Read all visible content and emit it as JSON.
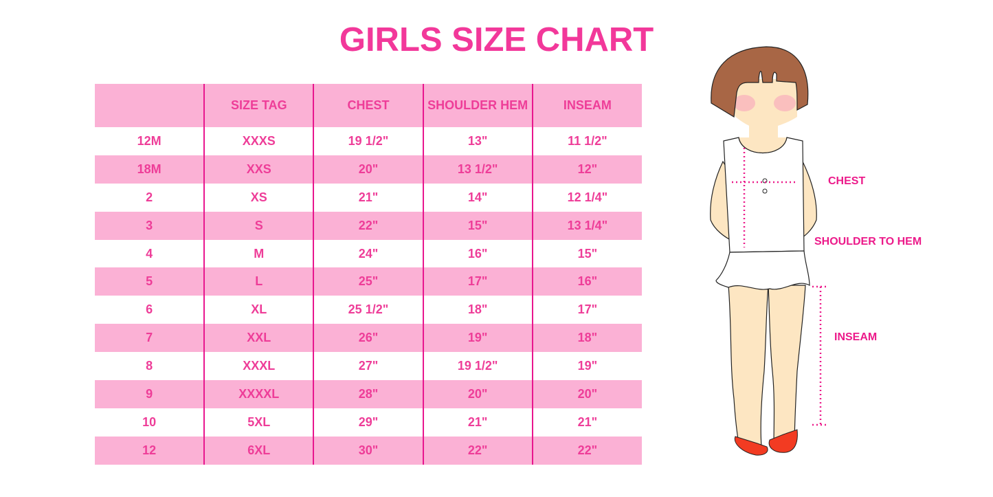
{
  "title": "GIRLS SIZE CHART",
  "table": {
    "headers": [
      "",
      "SIZE TAG",
      "CHEST",
      "SHOULDER HEM",
      "INSEAM"
    ],
    "rows": [
      [
        "12M",
        "XXXS",
        "19 1/2\"",
        "13\"",
        "11 1/2\""
      ],
      [
        "18M",
        "XXS",
        "20\"",
        "13 1/2\"",
        "12\""
      ],
      [
        "2",
        "XS",
        "21\"",
        "14\"",
        "12 1/4\""
      ],
      [
        "3",
        "S",
        "22\"",
        "15\"",
        "13 1/4\""
      ],
      [
        "4",
        "M",
        "24\"",
        "16\"",
        "15\""
      ],
      [
        "5",
        "L",
        "25\"",
        "17\"",
        "16\""
      ],
      [
        "6",
        "XL",
        "25 1/2\"",
        "18\"",
        "17\""
      ],
      [
        "7",
        "XXL",
        "26\"",
        "19\"",
        "18\""
      ],
      [
        "8",
        "XXXL",
        "27\"",
        "19 1/2\"",
        "19\""
      ],
      [
        "9",
        "XXXXL",
        "28\"",
        "20\"",
        "20\""
      ],
      [
        "10",
        "5XL",
        "29\"",
        "21\"",
        "21\""
      ],
      [
        "12",
        "6XL",
        "30\"",
        "22\"",
        "22\""
      ]
    ]
  },
  "illustration": {
    "labels": {
      "chest": "CHEST",
      "shoulder_to_hem": "SHOULDER TO HEM",
      "inseam": "INSEAM"
    }
  },
  "colors": {
    "accent": "#f2389a",
    "row_pink": "#fbb1d5",
    "divider": "#e8168e"
  }
}
